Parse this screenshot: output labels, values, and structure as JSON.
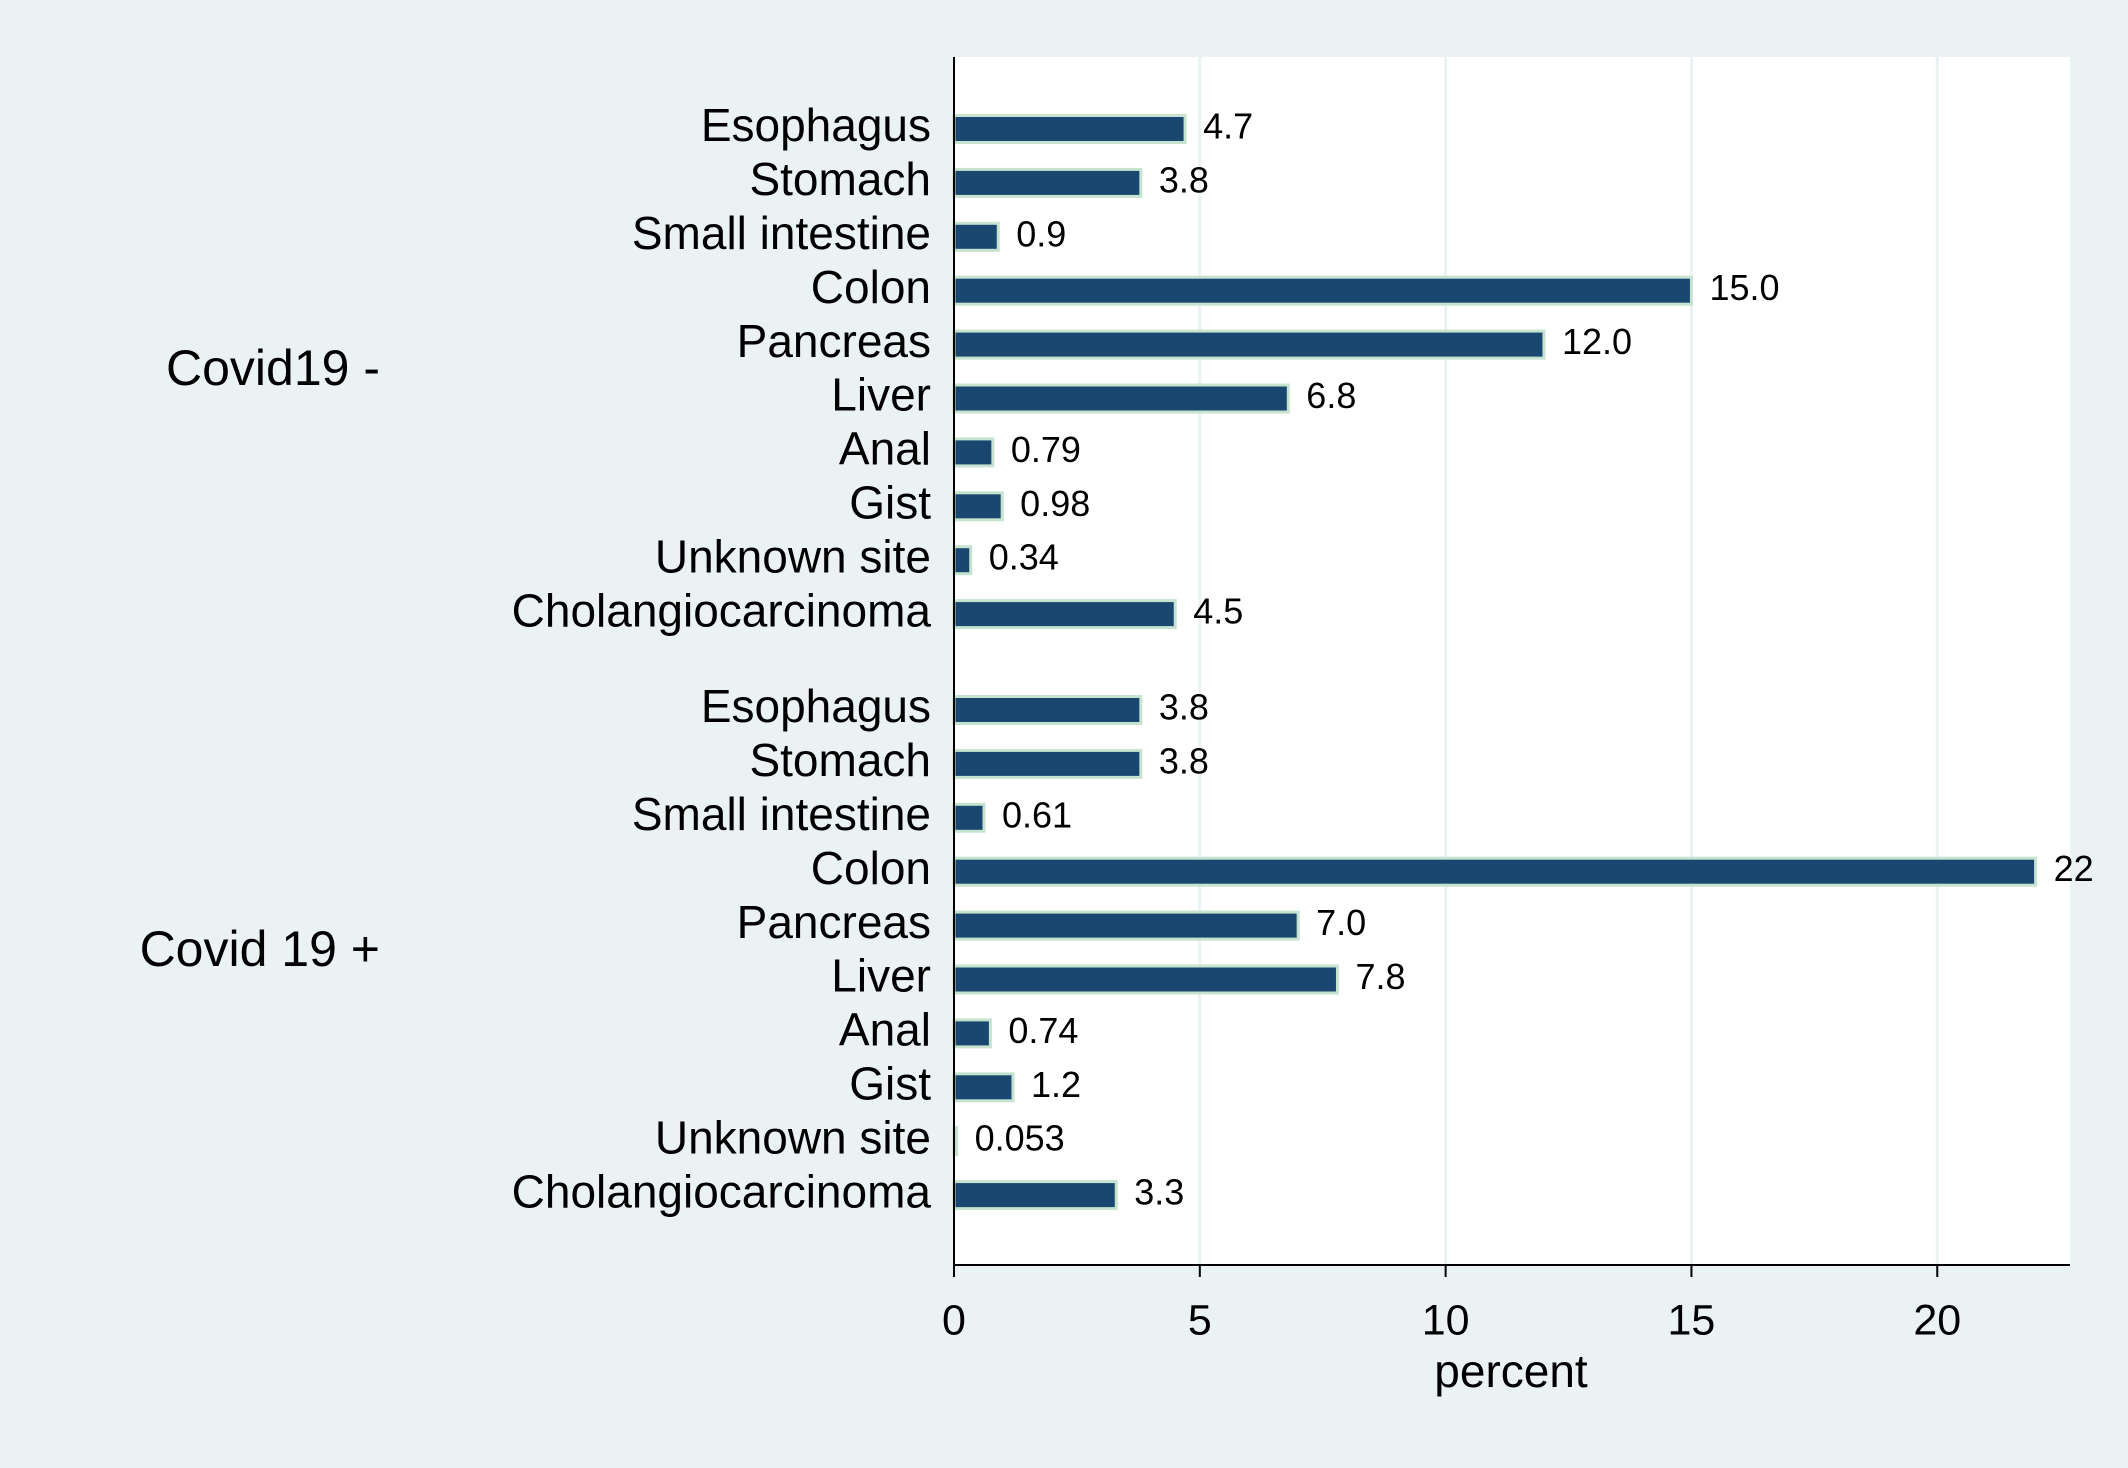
{
  "chart_data": {
    "type": "bar",
    "orientation": "horizontal",
    "color": "#1a476f",
    "edge_color": "#c5e3cf",
    "grid": true,
    "x_label": "percent",
    "xlim": [
      0,
      22.7
    ],
    "xticks": [
      0,
      5,
      10,
      15,
      20
    ],
    "groups": [
      {
        "name": "Covid19 -",
        "categories": [
          "Esophagus",
          "Stomach",
          "Small intestine",
          "Colon",
          "Pancreas",
          "Liver",
          "Anal",
          "Gist",
          "Unknown site",
          "Cholangiocarcinoma"
        ],
        "values": [
          4.7,
          3.8,
          0.9,
          15.0,
          12.0,
          6.8,
          0.79,
          0.98,
          0.34,
          4.5
        ],
        "value_labels": [
          "4.7",
          "3.8",
          "0.9",
          "15.0",
          "12.0",
          "6.8",
          "0.79",
          "0.98",
          "0.34",
          "4.5"
        ]
      },
      {
        "name": "Covid 19 +",
        "categories": [
          "Esophagus",
          "Stomach",
          "Small intestine",
          "Colon",
          "Pancreas",
          "Liver",
          "Anal",
          "Gist",
          "Unknown site",
          "Cholangiocarcinoma"
        ],
        "values": [
          3.8,
          3.8,
          0.61,
          22,
          7.0,
          7.8,
          0.74,
          1.2,
          0.053,
          3.3
        ],
        "value_labels": [
          "3.8",
          "3.8",
          "0.61",
          "22",
          "7.0",
          "7.8",
          "0.74",
          "1.2",
          "0.053",
          "3.3"
        ]
      }
    ]
  }
}
